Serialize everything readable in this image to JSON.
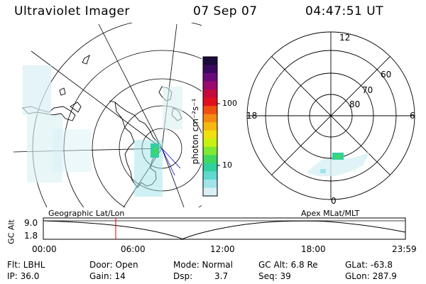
{
  "header": {
    "instrument": "Ultraviolet Imager",
    "date": "07 Sep 07",
    "time": "04:47:51 UT"
  },
  "colorbar": {
    "label": "photon cm⁻²s⁻¹",
    "ticks": [
      "100",
      "10"
    ],
    "colors": [
      "#1b0a3a",
      "#3a0a5e",
      "#6a0a7a",
      "#9a0a70",
      "#c40a3a",
      "#e0101e",
      "#f05010",
      "#f58a10",
      "#f5b810",
      "#f0e010",
      "#c8f010",
      "#80e830",
      "#40d860",
      "#30d0a0",
      "#60d8d0",
      "#a0e4e8",
      "#d8f0f4"
    ]
  },
  "polar_plot": {
    "mlt_labels": {
      "top": "12",
      "left": "18",
      "right": "6",
      "bottom": "0"
    },
    "lat_labels": [
      "60",
      "70",
      "80"
    ]
  },
  "timeline": {
    "left_title": "Geographic Lat/Lon",
    "right_title": "Apex  MLat/MLT",
    "ylabel": "GC Alt",
    "ymax_label": "9.0",
    "ymin_label": "1.8",
    "x_labels": [
      "00:00",
      "06:00",
      "12:00",
      "18:00",
      "23:59"
    ],
    "current_time_hours": 4.8
  },
  "info": {
    "flt": "Flt: LBHL",
    "ip": "IP: 36.0",
    "door": "Door: Open",
    "gain": "Gain: 14",
    "mode": "Mode: Normal",
    "dsp_label": "Dsp:",
    "dsp_value": "3.7",
    "gc_alt": "GC Alt: 6.8 Re",
    "seq": "Seq: 39",
    "glat": "GLat: -63.8",
    "glon": "GLon: 287.9"
  }
}
